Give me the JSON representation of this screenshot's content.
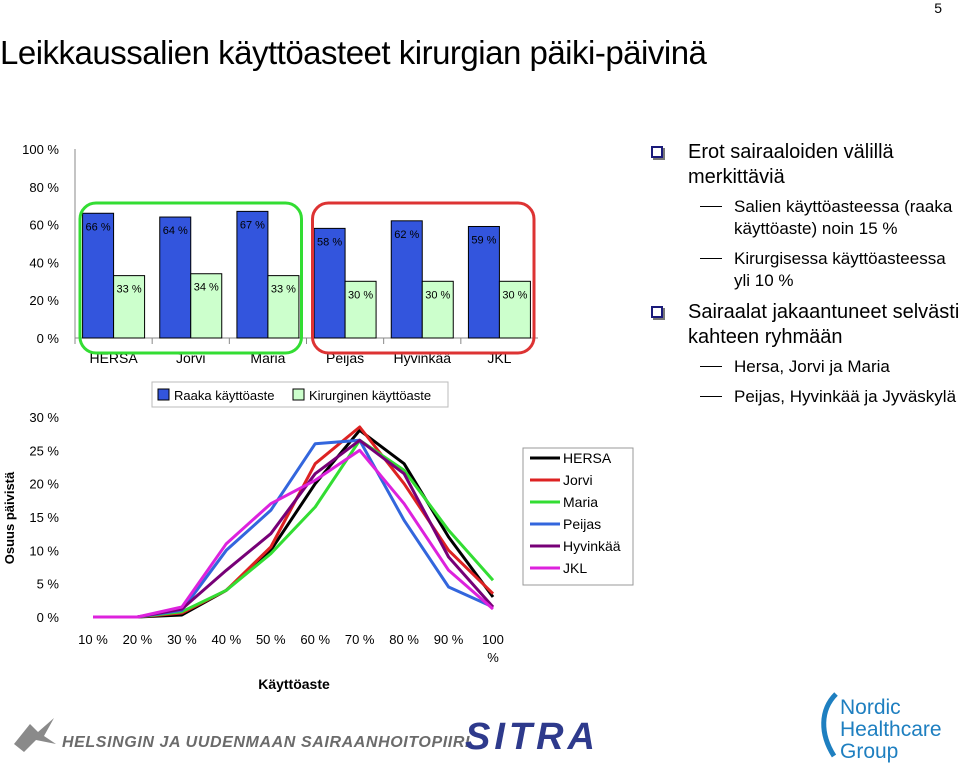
{
  "page_number": "5",
  "title": "Leikkaussalien käyttöasteet kirurgian päiki-päivinä",
  "bullets": [
    {
      "text": "Erot sairaaloiden välillä merkittäviä",
      "sub": [
        "Salien käyttöasteessa (raaka käyttöaste) noin 15 %",
        "Kirurgisessa käyttöasteessa yli 10 %"
      ]
    },
    {
      "text": "Sairaalat jakaantuneet selvästi kahteen ryhmään",
      "sub": [
        "Hersa, Jorvi ja Maria",
        "Peijas, Hyvinkää ja Jyväskylä"
      ]
    }
  ],
  "footer": {
    "org": "HELSINGIN JA UUDENMAAN SAIRAANHOITOPIIRI",
    "sitra": "SITRA",
    "nhg_lines": [
      "Nordic",
      "Healthcare",
      "Group"
    ]
  },
  "colors": {
    "raw": "#3355dd",
    "surgical": "#ccffcc",
    "group1": "#33dd33",
    "group2": "#dd3333"
  },
  "chart_data": [
    {
      "type": "bar",
      "categories": [
        "HERSA",
        "Jorvi",
        "Maria",
        "Peijas",
        "Hyvinkää",
        "JKL"
      ],
      "series": [
        {
          "name": "Raaka käyttöaste",
          "values": [
            66,
            64,
            67,
            58,
            62,
            59
          ],
          "labels": [
            "66 %",
            "64 %",
            "67 %",
            "58 %",
            "62 %",
            "59 %"
          ]
        },
        {
          "name": "Kirurginen käyttöaste",
          "values": [
            33,
            34,
            33,
            30,
            30,
            30
          ],
          "labels": [
            "33 %",
            "34 %",
            "33 %",
            "30 %",
            "30 %",
            "30 %"
          ]
        }
      ],
      "ylim": [
        0,
        100
      ],
      "yticks": [
        "0 %",
        "20 %",
        "40 %",
        "60 %",
        "80 %",
        "100 %"
      ],
      "legend": "bottom",
      "annotations": [
        "green-rounded-box around HERSA, Jorvi, Maria",
        "red-rounded-box around Peijas, Hyvinkää, JKL"
      ]
    },
    {
      "type": "line",
      "x": [
        10,
        20,
        30,
        40,
        50,
        60,
        70,
        80,
        90,
        100
      ],
      "xticks": [
        "10 %",
        "20 %",
        "30 %",
        "40 %",
        "50 %",
        "60 %",
        "70 %",
        "80 %",
        "90 %",
        "100 %"
      ],
      "xlabel": "Käyttöaste",
      "ylabel": "Osuus päivistä",
      "ylim": [
        0,
        30
      ],
      "yticks": [
        "0 %",
        "5 %",
        "10 %",
        "15 %",
        "20 %",
        "25 %",
        "30 %"
      ],
      "legend": "right",
      "series": [
        {
          "name": "HERSA",
          "color": "#000000",
          "values": [
            0,
            0,
            0.3,
            4,
            10,
            20,
            28,
            23,
            12,
            3
          ]
        },
        {
          "name": "Jorvi",
          "color": "#dd2222",
          "values": [
            0,
            0,
            0.6,
            4,
            10.5,
            23,
            28.5,
            20,
            10,
            3.5
          ]
        },
        {
          "name": "Maria",
          "color": "#33dd33",
          "values": [
            0,
            0,
            0.8,
            4,
            9.5,
            16.5,
            26.5,
            22,
            13,
            5.5
          ]
        },
        {
          "name": "Peijas",
          "color": "#3366dd",
          "values": [
            0,
            0,
            1.0,
            10,
            16,
            26,
            26.5,
            14.5,
            4.5,
            1.5
          ]
        },
        {
          "name": "Hyvinkää",
          "color": "#770077",
          "values": [
            0,
            0,
            1.2,
            7,
            12.5,
            21.5,
            26.5,
            21.5,
            9,
            1.5
          ]
        },
        {
          "name": "JKL",
          "color": "#dd22dd",
          "values": [
            0,
            0,
            1.5,
            11,
            17,
            20.5,
            25,
            17,
            7,
            1.2
          ]
        }
      ]
    }
  ]
}
